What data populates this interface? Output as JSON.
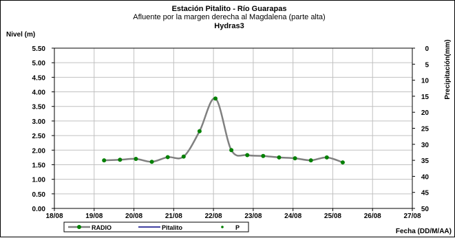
{
  "chart_data": {
    "type": "line",
    "title": "Estación Pitalito  - Río Guarapas",
    "subtitle": "Afluente por la margen derecha al Magdalena (parte alta)",
    "subtitle2": "Hydras3",
    "ylabel": "Nivel (m)",
    "y2label": "Precipitación(mm)",
    "xlabel": "Fecha (DD/M/AA)",
    "ylim": [
      0,
      5.5
    ],
    "y2lim": [
      0,
      50
    ],
    "y2_inverted": true,
    "grid": true,
    "x_ticks": [
      "18/08",
      "19/08",
      "20/08",
      "21/08",
      "22/08",
      "23/08",
      "24/08",
      "25/08",
      "26/08",
      "27/08"
    ],
    "y_ticks": [
      "0.00",
      "0.50",
      "1.00",
      "1.50",
      "2.00",
      "2.50",
      "3.00",
      "3.50",
      "4.00",
      "4.50",
      "5.00",
      "5.50"
    ],
    "y2_ticks": [
      "0",
      "5",
      "10",
      "15",
      "20",
      "25",
      "30",
      "35",
      "40",
      "45",
      "50"
    ],
    "series": [
      {
        "name": "RADIO",
        "color": "#808080",
        "marker_color": "#008000",
        "x": [
          1.25,
          1.65,
          2.05,
          2.45,
          2.85,
          3.25,
          3.65,
          4.05,
          4.45,
          4.85,
          5.25,
          5.65,
          6.05,
          6.45,
          6.85,
          7.25
        ],
        "values": [
          1.65,
          1.67,
          1.7,
          1.6,
          1.76,
          1.78,
          2.65,
          3.77,
          2.0,
          1.83,
          1.8,
          1.75,
          1.72,
          1.65,
          1.75,
          1.58
        ]
      },
      {
        "name": "Pitalito",
        "color": "#000080",
        "x": [],
        "values": []
      },
      {
        "name": "P",
        "color": "#008000",
        "x": [],
        "values": []
      }
    ],
    "legend_position": "bottom"
  }
}
